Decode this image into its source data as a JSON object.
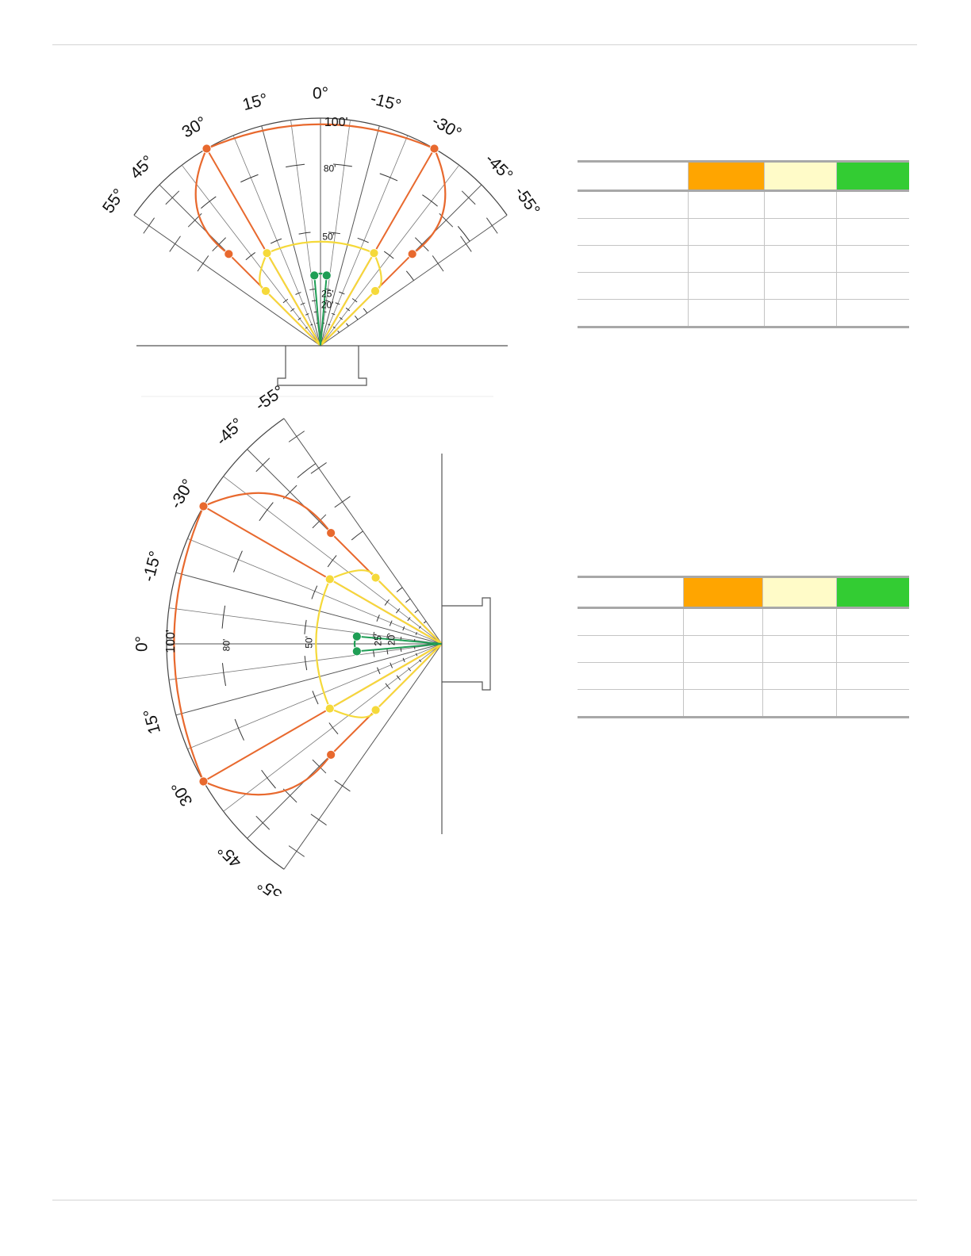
{
  "diagrams": {
    "angle_labels": [
      "-55°",
      "-45°",
      "-30°",
      "-15°",
      "0°",
      "15°",
      "30°",
      "45°",
      "55°"
    ],
    "angles": [
      -55,
      -45,
      -30,
      -15,
      0,
      15,
      30,
      45,
      55
    ],
    "range_labels": [
      "100'",
      "80'",
      "50'",
      "25'",
      "20'"
    ],
    "ranges": [
      100,
      80,
      50,
      25,
      20
    ],
    "max_range": 100,
    "zones": [
      {
        "color": "#e8692e",
        "points": [
          [
            -30,
            100
          ],
          [
            -45,
            57
          ],
          [
            45,
            57
          ],
          [
            30,
            100
          ]
        ]
      },
      {
        "color": "#f5d93a",
        "points": [
          [
            -30,
            47
          ],
          [
            -45,
            34
          ],
          [
            45,
            34
          ],
          [
            30,
            47
          ]
        ]
      },
      {
        "color": "#1f9e55",
        "points": [
          [
            -5,
            31
          ],
          [
            5,
            31
          ]
        ]
      }
    ]
  },
  "tables": {
    "top": {
      "header_colors": [
        "#ffffff",
        "#ffa500",
        "#fffbc8",
        "#33cc33"
      ],
      "rows": [
        [
          "",
          "",
          "",
          ""
        ],
        [
          "",
          "",
          "",
          ""
        ],
        [
          "",
          "",
          "",
          ""
        ],
        [
          "",
          "",
          "",
          ""
        ],
        [
          "",
          "",
          "",
          ""
        ]
      ]
    },
    "side": {
      "header_colors": [
        "#ffffff",
        "#ffa500",
        "#fffbc8",
        "#33cc33"
      ],
      "rows": [
        [
          "",
          "",
          "",
          ""
        ],
        [
          "",
          "",
          "",
          ""
        ],
        [
          "",
          "",
          "",
          ""
        ],
        [
          "",
          "",
          "",
          ""
        ]
      ]
    }
  }
}
